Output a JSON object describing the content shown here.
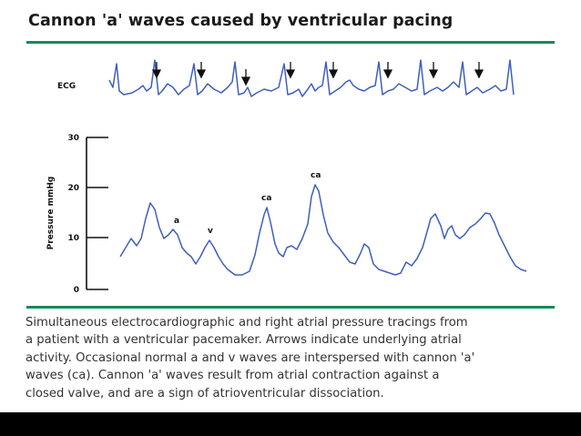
{
  "slide": {
    "title": "Cannon 'a' waves caused by ventricular pacing",
    "caption_lines": [
      "Simultaneous electrocardiographic and right atrial pressure tracings from",
      "a patient with a ventricular pacemaker. Arrows indicate underlying atrial",
      "activity. Occasional normal a and v waves are interspersed with cannon 'a'",
      "waves (ca). Cannon 'a' waves result from atrial contraction against a",
      "closed valve, and are a sign of atrioventricular dissociation."
    ]
  },
  "ecg": {
    "label": "ECG",
    "arrow_count": 8
  },
  "pressure": {
    "axis_label": "Pressure mmHg",
    "ticks": [
      "30",
      "20",
      "10",
      "0"
    ],
    "annotations": {
      "a": "a",
      "v": "v",
      "ca": "ca"
    }
  },
  "colors": {
    "trace": "#3f5fbf",
    "rule": "#1a8a56",
    "axis": "#111111"
  }
}
